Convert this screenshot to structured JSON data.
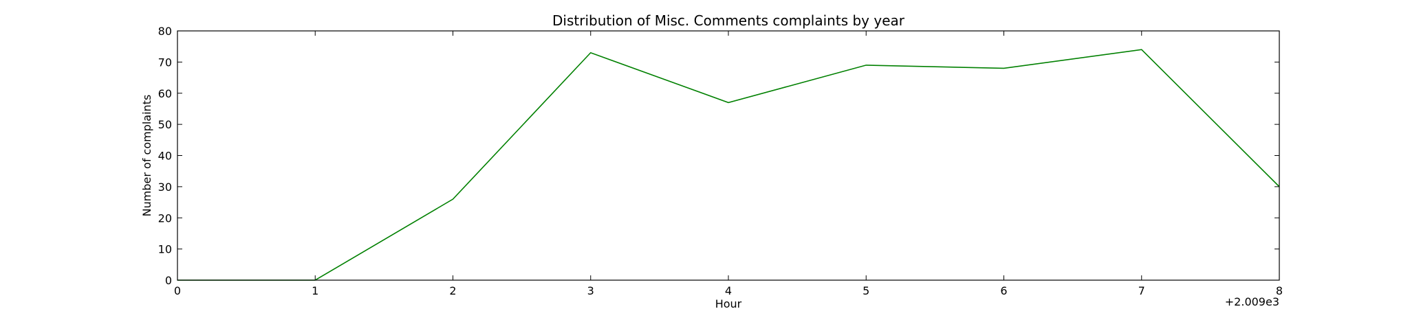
{
  "chart_data": {
    "type": "line",
    "title": "Distribution of  Misc. Comments complaints by year",
    "xlabel": "Hour",
    "ylabel": "Number of complaints",
    "x_offset_label": "+2.009e3",
    "x": [
      0,
      1,
      2,
      3,
      4,
      5,
      6,
      7,
      8
    ],
    "xlim": [
      0,
      8
    ],
    "ylim": [
      0,
      80
    ],
    "xticks": [
      "0",
      "1",
      "2",
      "3",
      "4",
      "5",
      "6",
      "7",
      "8"
    ],
    "yticks": [
      "0",
      "10",
      "20",
      "30",
      "40",
      "50",
      "60",
      "70",
      "80"
    ],
    "grid": false,
    "series": [
      {
        "color": "#008000",
        "values": [
          0,
          0,
          26,
          73,
          57,
          69,
          68,
          74,
          30
        ]
      }
    ]
  }
}
